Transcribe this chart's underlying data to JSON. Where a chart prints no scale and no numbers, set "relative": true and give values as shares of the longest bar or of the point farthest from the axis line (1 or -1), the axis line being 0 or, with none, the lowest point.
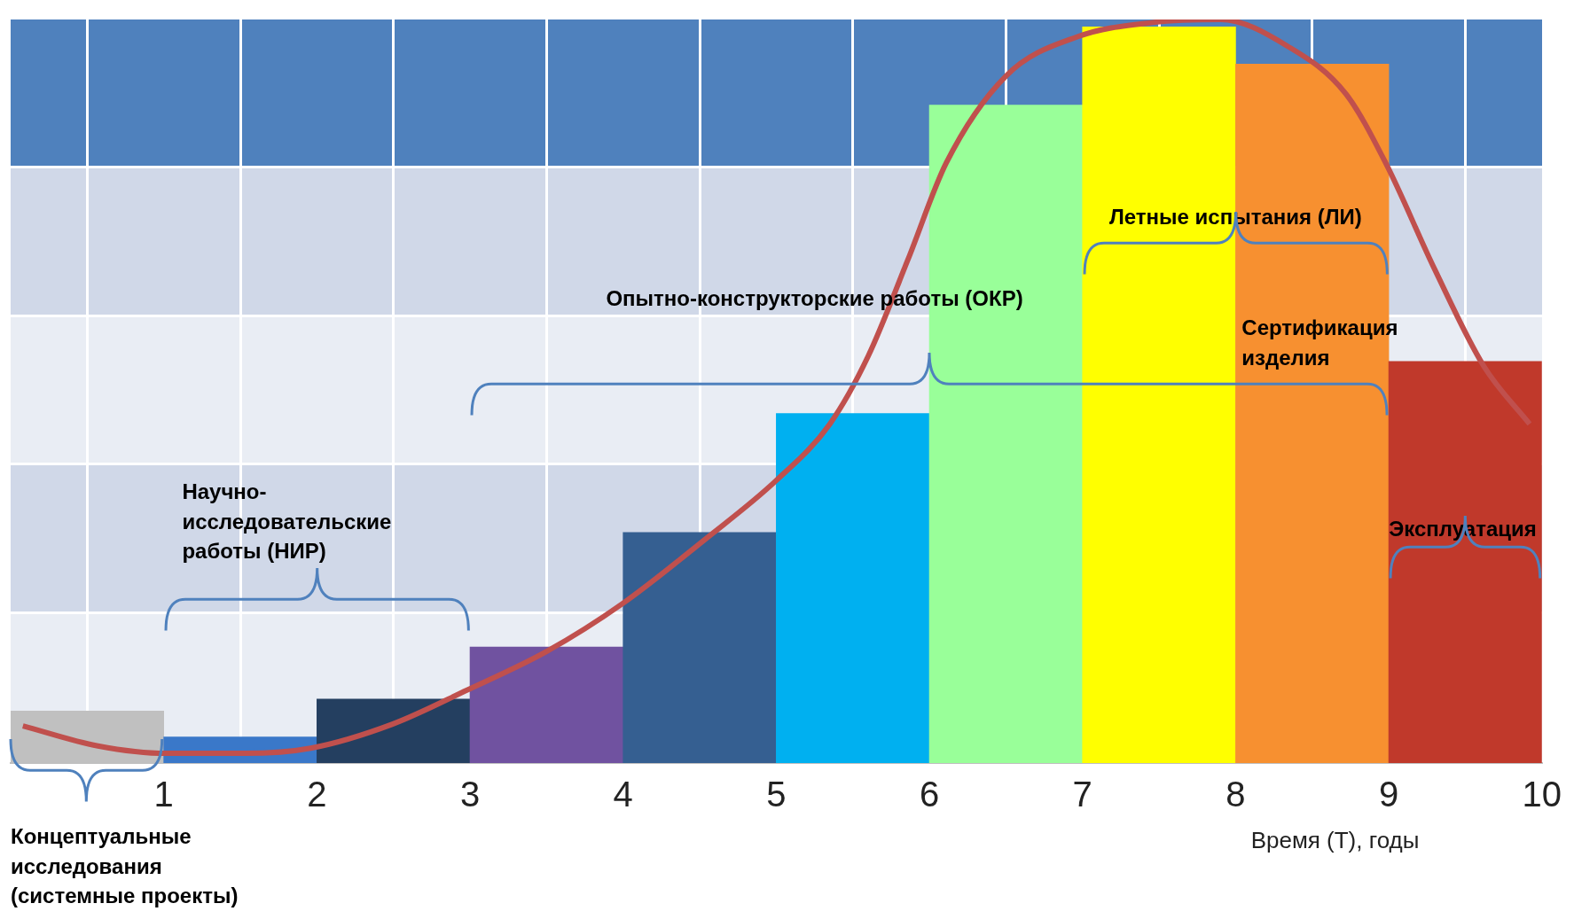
{
  "chart_data": {
    "type": "bar",
    "relative": true,
    "xlabel": "Время (Т), годы",
    "x": [
      0.5,
      1.5,
      2.5,
      3.5,
      4.5,
      5.5,
      6.5,
      7.5,
      8.5,
      9.5
    ],
    "xlim": [
      0,
      10
    ],
    "xticks": [
      1,
      2,
      3,
      4,
      5,
      6,
      7,
      8,
      9,
      10
    ],
    "grid": "x",
    "marker": "none",
    "series": [
      {
        "colors": [
          "#c0c0c0",
          "#3a78c9",
          "#243f60",
          "#7052a0",
          "#355f91",
          "#00b0f0",
          "#99ff99",
          "#ffff00",
          "#f79030",
          "#c0392b"
        ],
        "values": [
          0.07,
          0.035,
          0.086,
          0.156,
          0.31,
          0.47,
          0.885,
          0.99,
          0.94,
          0.54
        ]
      },
      {
        "type": "line",
        "color": "#c0504d",
        "x": [
          0.08,
          0.57,
          1.02,
          1.53,
          1.96,
          2.49,
          2.98,
          3.5,
          4.0,
          4.53,
          5.0,
          5.35,
          5.6,
          5.86,
          6.11,
          6.5,
          6.97,
          7.46,
          7.9,
          8.34,
          8.72,
          8.98,
          9.3,
          9.62,
          9.92
        ],
        "values": [
          0.05,
          0.023,
          0.013,
          0.013,
          0.02,
          0.052,
          0.098,
          0.15,
          0.215,
          0.3,
          0.38,
          0.456,
          0.547,
          0.677,
          0.807,
          0.924,
          0.977,
          0.996,
          1,
          0.964,
          0.9,
          0.807,
          0.664,
          0.534,
          0.456
        ]
      }
    ],
    "annotations": [
      "Концептуальные исследования (системные проекты)",
      "Научно-исследовательские работы (НИР)",
      "Опытно-конструкторские работы (ОКР)",
      "Летные испытания (ЛИ)",
      "Сертификация изделия",
      "Эксплуатация"
    ]
  }
}
